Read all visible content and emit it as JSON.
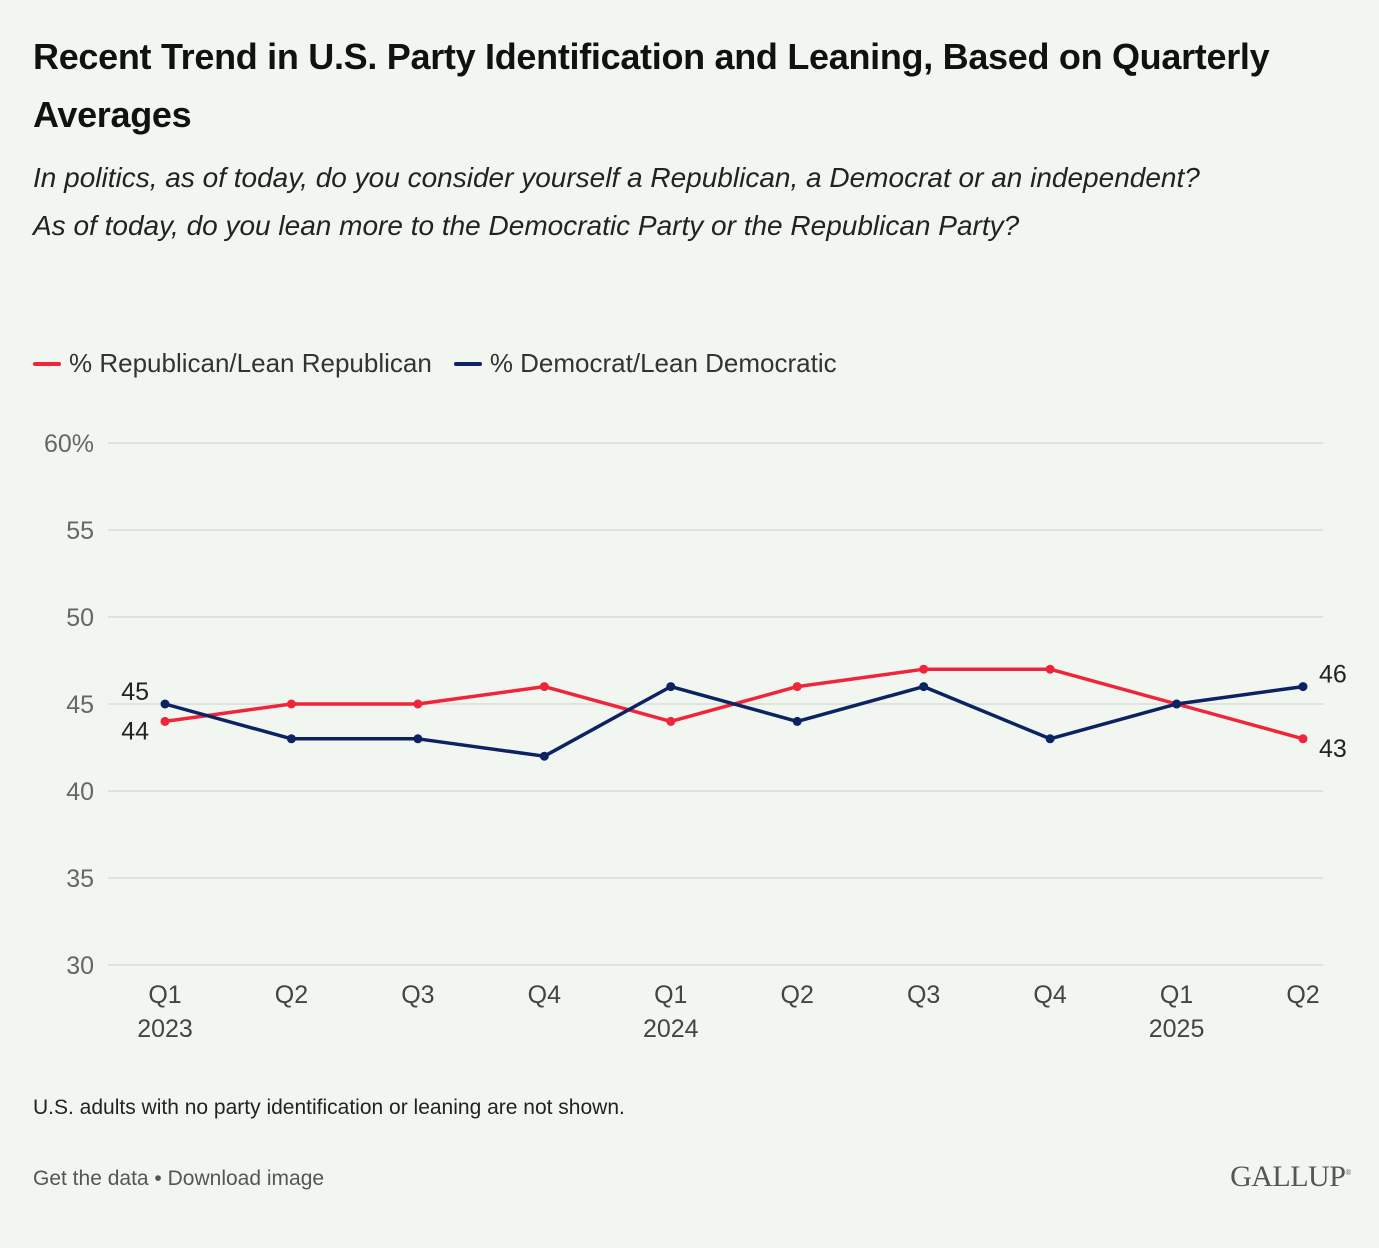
{
  "title": "Recent Trend in U.S. Party Identification and Leaning, Based on Quarterly Averages",
  "subtitle_lines": [
    "In politics, as of today, do you consider yourself a Republican, a Democrat or an independent?",
    "As of today, do you lean more to the Democratic Party or the Republican Party?"
  ],
  "note": "U.S. adults with no party identification or leaning are not shown.",
  "footer": {
    "get_data": "Get the data",
    "sep": " • ",
    "download": "Download image",
    "logo": "GALLUP"
  },
  "colors": {
    "republican": "#f0253b",
    "democrat": "#0d2263",
    "grid": "#d6ddd5",
    "tick": "#666666"
  },
  "chart_data": {
    "type": "line",
    "title": "Recent Trend in U.S. Party Identification and Leaning, Based on Quarterly Averages",
    "x": [
      "Q1|2023",
      "Q2",
      "Q3",
      "Q4",
      "Q1|2024",
      "Q2",
      "Q3",
      "Q4",
      "Q1|2025",
      "Q2"
    ],
    "series": [
      {
        "name": "% Republican/Lean Republican",
        "key": "republican",
        "values": [
          44,
          45,
          45,
          46,
          44,
          46,
          47,
          47,
          45,
          43
        ]
      },
      {
        "name": "% Democrat/Lean Democratic",
        "key": "democrat",
        "values": [
          45,
          43,
          43,
          42,
          46,
          44,
          46,
          43,
          45,
          46
        ]
      }
    ],
    "yticks": [
      "30",
      "35",
      "40",
      "45",
      "50",
      "55",
      "60%"
    ],
    "ylim": [
      30,
      60
    ],
    "grid": true,
    "legend": "top-left",
    "data_labels": [
      {
        "series": 0,
        "index": 0,
        "text": "44"
      },
      {
        "series": 1,
        "index": 0,
        "text": "45"
      },
      {
        "series": 0,
        "index": 9,
        "text": "43"
      },
      {
        "series": 1,
        "index": 9,
        "text": "46"
      }
    ]
  }
}
